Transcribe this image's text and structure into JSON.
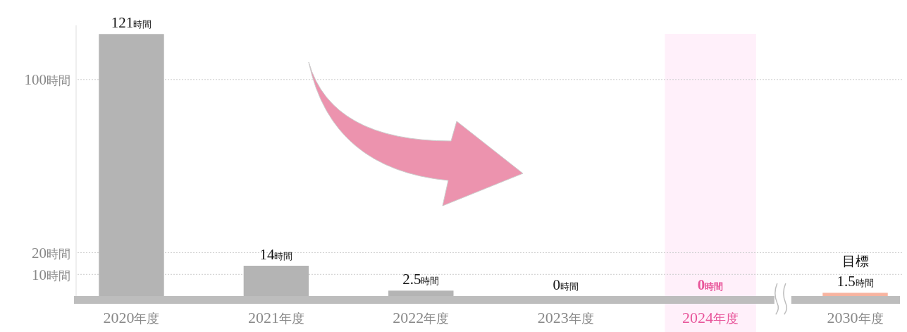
{
  "chart_data": {
    "type": "bar",
    "categories": [
      "2020年度",
      "2021年度",
      "2022年度",
      "2023年度",
      "2024年度",
      "2030年度"
    ],
    "values": [
      121,
      14,
      2.5,
      0,
      0,
      1.5
    ],
    "colors": [
      "#b4b4b4",
      "#b4b4b4",
      "#b4b4b4",
      "#b4b4b4",
      "#b4b4b4",
      "#f8b4a0"
    ],
    "value_labels": [
      "121時間",
      "14時間",
      "2.5時間",
      "0時間",
      "0時間",
      "1.5時間"
    ],
    "ylim": [
      0,
      125
    ],
    "yticks": [
      {
        "value": 10,
        "label": "10時間"
      },
      {
        "value": 20,
        "label": "20時間"
      },
      {
        "value": 100,
        "label": "100時間"
      }
    ],
    "grid": "y",
    "bands": [
      {
        "axis": "x",
        "from": "2024年度",
        "to": "2024年度",
        "color": "#fff0fa"
      }
    ],
    "annotations": [
      {
        "text": "目標",
        "x": "2030年度",
        "y": 1.5
      }
    ]
  }
}
